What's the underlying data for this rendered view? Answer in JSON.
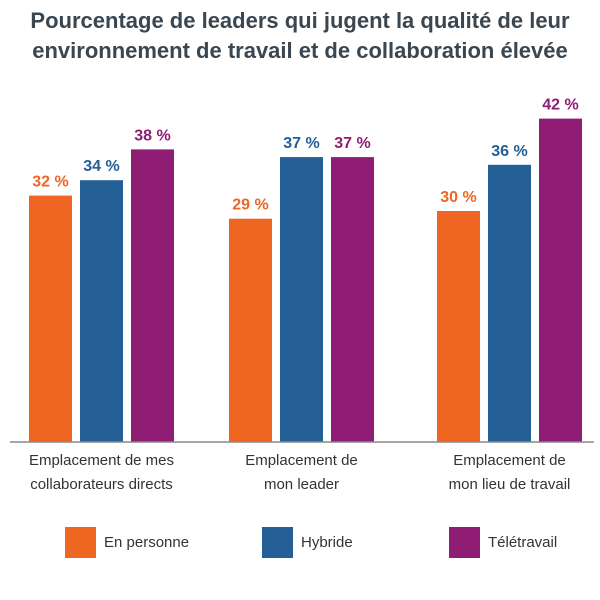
{
  "title_line1": "Pourcentage de leaders qui jugent la qualité de leur",
  "title_line2": "environnement de travail et de collaboration élevée",
  "chart_data": {
    "type": "bar",
    "title": "Pourcentage de leaders qui jugent la qualité de leur environnement de travail et de collaboration élevée",
    "categories": [
      [
        "Emplacement de mes",
        "collaborateurs directs"
      ],
      [
        "Emplacement de",
        "mon leader"
      ],
      [
        "Emplacement de",
        "mon lieu de travail"
      ]
    ],
    "series": [
      {
        "name": "En personne",
        "values": [
          32,
          29,
          30
        ],
        "labels": [
          "32 %",
          "29 %",
          "30 %"
        ],
        "color": "#ee6622"
      },
      {
        "name": "Hybride",
        "values": [
          34,
          37,
          36
        ],
        "labels": [
          "34 %",
          "37 %",
          "36 %"
        ],
        "color": "#245f95"
      },
      {
        "name": "Télétravail",
        "values": [
          38,
          37,
          42
        ],
        "labels": [
          "38 %",
          "37 %",
          "42 %"
        ],
        "color": "#8f1d74"
      }
    ],
    "ylim": [
      0,
      50
    ],
    "grid": false,
    "legend": "bottom"
  }
}
